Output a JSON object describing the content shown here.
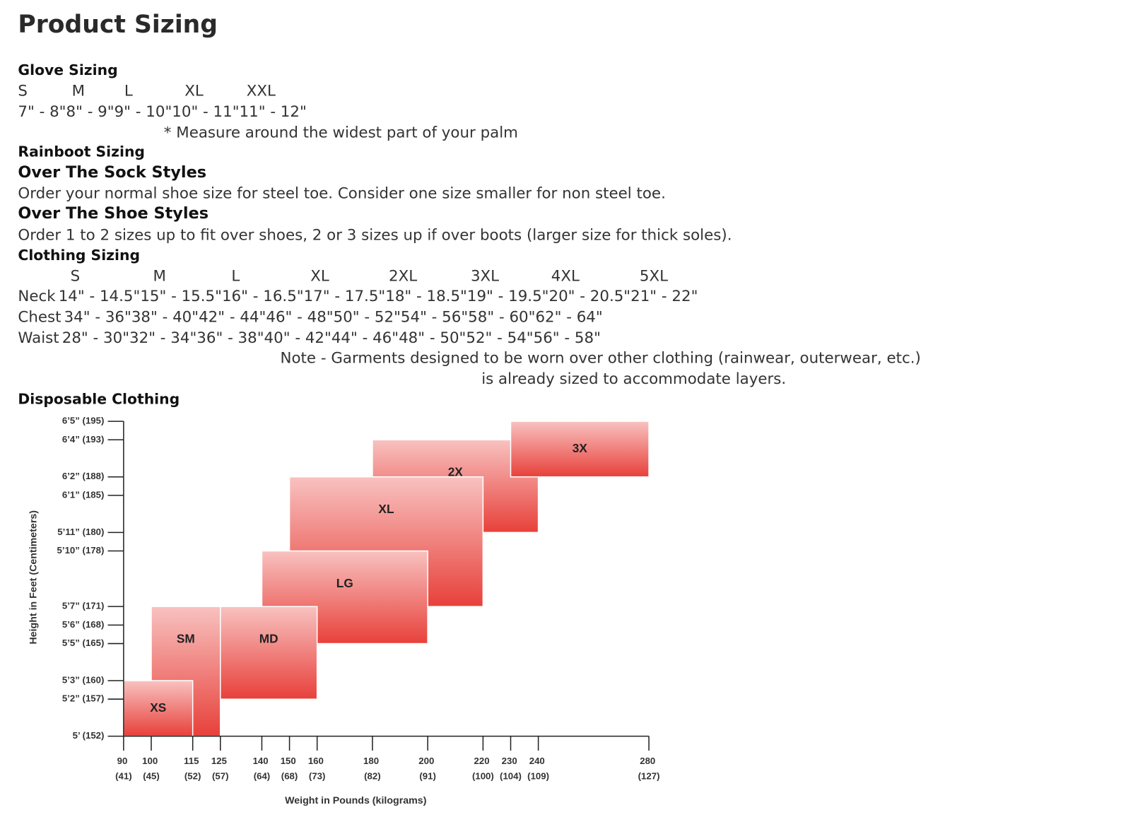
{
  "title": "Product Sizing",
  "glove_sizing": {
    "heading": "Glove Sizing",
    "sizes": [
      "S",
      "M",
      "L",
      "XL",
      "XXL"
    ],
    "ranges": [
      "7\" - 8\"",
      "8\" - 9\"",
      "9\" - 10\"",
      "10\" - 11\"",
      "11\" - 12\""
    ],
    "note": "* Measure around the widest part of your palm"
  },
  "rainboot_sizing": {
    "heading": "Rainboot Sizing",
    "over_the_sock": {
      "heading": "Over The Sock Styles",
      "text": "Order your normal shoe size for steel toe. Consider one size smaller for non steel toe."
    },
    "over_the_shoe": {
      "heading": "Over The Shoe Styles",
      "text": "Order 1 to 2 sizes up to fit over shoes, 2 or 3 sizes up if over boots (larger size for thick soles)."
    }
  },
  "clothing_sizing": {
    "heading": "Clothing Sizing",
    "sizes": [
      "S",
      "M",
      "L",
      "XL",
      "2XL",
      "3XL",
      "4XL",
      "5XL"
    ],
    "rows": [
      {
        "label": "Neck",
        "values": [
          "14\" - 14.5\"",
          "15\" - 15.5\"",
          "16\" - 16.5\"",
          "17\" - 17.5\"",
          "18\" - 18.5\"",
          "19\" - 19.5\"",
          "20\" - 20.5\"",
          "21\" - 22\""
        ]
      },
      {
        "label": "Chest",
        "values": [
          "34\" - 36\"",
          "38\" - 40\"",
          "42\" - 44\"",
          "46\" - 48\"",
          "50\" - 52\"",
          "54\" - 56\"",
          "58\" - 60\"",
          "62\" - 64\""
        ]
      },
      {
        "label": "Waist",
        "values": [
          "28\" - 30\"",
          "32\" - 34\"",
          "36\" - 38\"",
          "40\" - 42\"",
          "44\" - 46\"",
          "48\" - 50\"",
          "52\" - 54\"",
          "56\" - 58\""
        ]
      }
    ],
    "note": [
      "Note - Garments designed to be worn over other clothing (rainwear, outerwear, etc.)",
      "is already sized to accommodate layers."
    ]
  },
  "chart_data": {
    "type": "rect",
    "title": "Disposable Clothing",
    "x_label": "Weight in Pounds (kilograms)",
    "y_label": "Height in Feet (Centimeters)",
    "xlim": [
      90,
      280
    ],
    "xticks": [
      {
        "value": 90,
        "label": "90 (41)"
      },
      {
        "value": 100,
        "label": "100 (45)"
      },
      {
        "value": 115,
        "label": "115 (52)"
      },
      {
        "value": 125,
        "label": "125 (57)"
      },
      {
        "value": 140,
        "label": "140 (64)"
      },
      {
        "value": 150,
        "label": "150 (68)"
      },
      {
        "value": 160,
        "label": "160 (73)"
      },
      {
        "value": 180,
        "label": "180 (82)"
      },
      {
        "value": 200,
        "label": "200 (91)"
      },
      {
        "value": 220,
        "label": "220 (100)"
      },
      {
        "value": 230,
        "label": "230 (104)"
      },
      {
        "value": 240,
        "label": "240 (109)"
      },
      {
        "value": 280,
        "label": "280 (127)"
      }
    ],
    "ylim": [
      60,
      77
    ],
    "yticks": [
      {
        "value": 60,
        "label": "5’ (152)"
      },
      {
        "value": 62,
        "label": "5’2” (157)"
      },
      {
        "value": 63,
        "label": "5’3” (160)"
      },
      {
        "value": 65,
        "label": "5’5” (165)"
      },
      {
        "value": 66,
        "label": "5’6” (168)"
      },
      {
        "value": 67,
        "label": "5’7” (171)"
      },
      {
        "value": 70,
        "label": "5’10” (178)"
      },
      {
        "value": 71,
        "label": "5’11” (180)"
      },
      {
        "value": 73,
        "label": "6’1” (185)"
      },
      {
        "value": 74,
        "label": "6’2” (188)"
      },
      {
        "value": 76,
        "label": "6’4” (193)"
      },
      {
        "value": 77,
        "label": "6’5” (195)"
      }
    ],
    "color": "#e8403a",
    "series": [
      {
        "name": "2X",
        "x": [
          180,
          240
        ],
        "y": [
          71,
          76
        ]
      },
      {
        "name": "3X",
        "x": [
          230,
          280
        ],
        "y": [
          74,
          77
        ]
      },
      {
        "name": "XL",
        "x": [
          150,
          220
        ],
        "y": [
          67,
          74
        ]
      },
      {
        "name": "LG",
        "x": [
          140,
          200
        ],
        "y": [
          65,
          70
        ]
      },
      {
        "name": "MD",
        "x": [
          125,
          160
        ],
        "y": [
          62,
          67
        ]
      },
      {
        "name": "SM",
        "x": [
          100,
          125
        ],
        "y": [
          60,
          67
        ]
      },
      {
        "name": "XS",
        "x": [
          90,
          115
        ],
        "y": [
          60,
          63
        ]
      }
    ]
  }
}
